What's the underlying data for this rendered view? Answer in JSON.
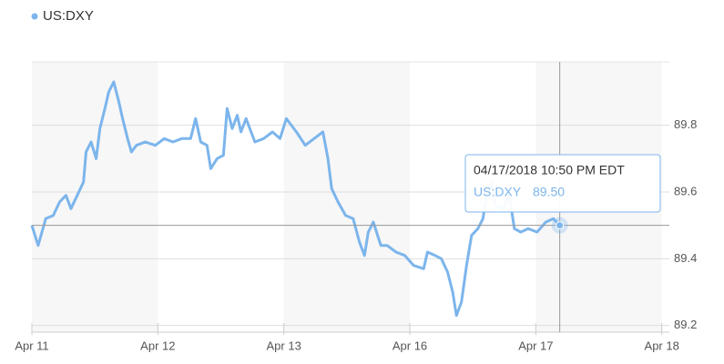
{
  "chart_data": {
    "type": "line",
    "x": [
      0,
      0.05,
      0.11,
      0.17,
      0.22,
      0.27,
      0.31,
      0.36,
      0.41,
      0.43,
      0.47,
      0.51,
      0.54,
      0.58,
      0.61,
      0.65,
      0.69,
      0.72,
      0.76,
      0.79,
      0.83,
      0.9,
      0.98,
      1.05,
      1.12,
      1.19,
      1.26,
      1.3,
      1.34,
      1.39,
      1.42,
      1.47,
      1.52,
      1.55,
      1.59,
      1.63,
      1.66,
      1.7,
      1.77,
      1.84,
      1.91,
      1.97,
      2.02,
      2.1,
      2.17,
      2.24,
      2.31,
      2.35,
      2.38,
      2.43,
      2.49,
      2.55,
      2.6,
      2.64,
      2.67,
      2.71,
      2.77,
      2.82,
      2.89,
      2.96,
      3.03,
      3.11,
      3.14,
      3.2,
      3.25,
      3.3,
      3.34,
      3.37,
      3.41,
      3.45,
      3.49,
      3.54,
      3.58,
      3.61,
      3.65,
      3.68,
      3.74,
      3.79,
      3.83,
      3.88,
      3.94,
      4.01,
      4.08,
      4.14,
      4.19
    ],
    "series": [
      {
        "name": "US:DXY",
        "color": "#7cb5ec",
        "values": [
          89.5,
          89.44,
          89.52,
          89.53,
          89.57,
          89.59,
          89.55,
          89.59,
          89.63,
          89.72,
          89.75,
          89.7,
          89.79,
          89.85,
          89.9,
          89.93,
          89.87,
          89.82,
          89.76,
          89.72,
          89.74,
          89.75,
          89.74,
          89.76,
          89.75,
          89.76,
          89.76,
          89.82,
          89.75,
          89.74,
          89.67,
          89.7,
          89.71,
          89.85,
          89.79,
          89.83,
          89.78,
          89.82,
          89.75,
          89.76,
          89.78,
          89.76,
          89.82,
          89.78,
          89.74,
          89.76,
          89.78,
          89.7,
          89.61,
          89.57,
          89.53,
          89.52,
          89.45,
          89.41,
          89.48,
          89.51,
          89.44,
          89.44,
          89.42,
          89.41,
          89.38,
          89.37,
          89.42,
          89.41,
          89.4,
          89.36,
          89.3,
          89.23,
          89.27,
          89.38,
          89.47,
          89.49,
          89.52,
          89.59,
          89.63,
          89.56,
          89.55,
          89.59,
          89.49,
          89.48,
          89.49,
          89.48,
          89.51,
          89.52,
          89.5
        ]
      }
    ],
    "xlim": [
      0,
      5.06
    ],
    "xticks": [
      {
        "value": 0,
        "label": "Apr 11"
      },
      {
        "value": 1,
        "label": "Apr 12"
      },
      {
        "value": 2,
        "label": "Apr 13"
      },
      {
        "value": 3,
        "label": "Apr 16"
      },
      {
        "value": 4,
        "label": "Apr 17"
      },
      {
        "value": 5,
        "label": "Apr 18"
      }
    ],
    "ylim": [
      89.18,
      89.99
    ],
    "yticks": [
      89.2,
      89.4,
      89.6,
      89.8
    ],
    "grid": true,
    "tooltip": {
      "title": "04/17/2018 10:50 PM EDT",
      "value": "89.50"
    }
  }
}
